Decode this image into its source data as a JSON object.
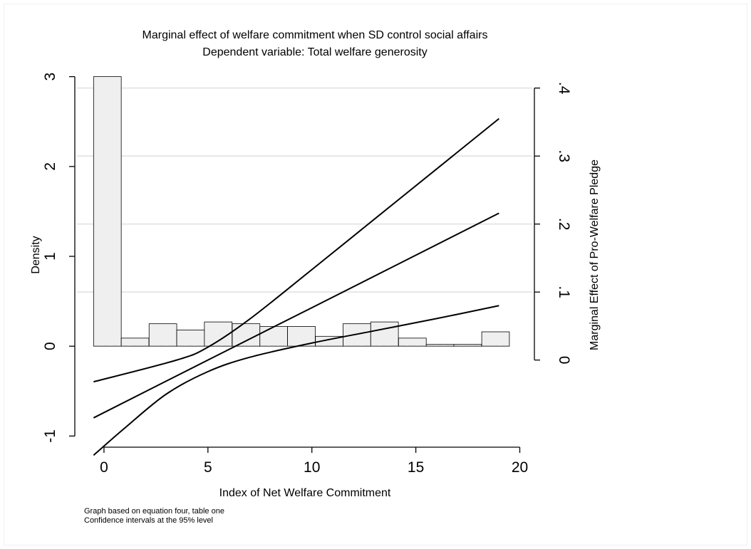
{
  "chart_data": {
    "type": "bar",
    "title": "Marginal effect of welfare commitment when SD control social affairs",
    "subtitle": "Dependent variable: Total welfare generosity",
    "xlabel": "Index of Net Welfare Commitment",
    "ylabel_left": "Density",
    "ylabel_right": "Marginal Effect of Pro-Welfare Pledge",
    "notes": [
      "Graph based on equation four, table one",
      "Confidence intervals at the 95% level"
    ],
    "xlim": [
      -1.3,
      20.6
    ],
    "ylim_left": [
      -1.1,
      3.1
    ],
    "ylim_right": [
      -0.125,
      0.43
    ],
    "grid": true,
    "x_ticks": [
      {
        "value": 0,
        "label": "0"
      },
      {
        "value": 5,
        "label": "5"
      },
      {
        "value": 10,
        "label": "10"
      },
      {
        "value": 15,
        "label": "15"
      },
      {
        "value": 20,
        "label": "20"
      }
    ],
    "y_left_ticks": [
      {
        "value": -1,
        "label": "-1"
      },
      {
        "value": 0,
        "label": "0"
      },
      {
        "value": 1,
        "label": "1"
      },
      {
        "value": 2,
        "label": "2"
      },
      {
        "value": 3,
        "label": "3"
      }
    ],
    "y_right_ticks": [
      {
        "value": 0,
        "label": "0"
      },
      {
        "value": 0.1,
        "label": ".1"
      },
      {
        "value": 0.2,
        "label": ".2"
      },
      {
        "value": 0.3,
        "label": ".3"
      },
      {
        "value": 0.4,
        "label": ".4"
      }
    ],
    "histogram": {
      "axis": "left",
      "bin_width": 1.33,
      "bin_starts": [
        -0.5,
        0.83,
        2.17,
        3.5,
        4.83,
        6.17,
        7.5,
        8.83,
        10.17,
        11.5,
        12.83,
        14.17,
        15.5,
        16.83,
        18.17
      ],
      "densities": [
        3.0,
        0.09,
        0.25,
        0.18,
        0.27,
        0.25,
        0.22,
        0.22,
        0.11,
        0.25,
        0.27,
        0.09,
        0.02,
        0.02,
        0.16
      ]
    },
    "series": [
      {
        "role": "upper",
        "axis": "right",
        "x": [
          -0.5,
          3.5,
          5.0,
          7.0,
          10.0,
          13.0,
          16.0,
          19.0
        ],
        "y": [
          -0.032,
          0.0,
          0.019,
          0.06,
          0.133,
          0.207,
          0.281,
          0.355
        ]
      },
      {
        "role": "estimate",
        "axis": "right",
        "x": [
          -0.5,
          5.0,
          10.0,
          19.0
        ],
        "y": [
          -0.085,
          0.0,
          0.077,
          0.216
        ]
      },
      {
        "role": "lower",
        "axis": "right",
        "x": [
          -0.5,
          1.0,
          3.0,
          5.0,
          7.0,
          10.0,
          13.0,
          16.0,
          19.0
        ],
        "y": [
          -0.14,
          -0.1,
          -0.05,
          -0.017,
          0.004,
          0.025,
          0.043,
          0.061,
          0.08
        ]
      }
    ],
    "colors": {
      "bar_fill": "#efefef",
      "bar_stroke": "#000000",
      "line": "#000000",
      "grid": "#e6e6e6",
      "frame": "#eef0f2"
    }
  }
}
